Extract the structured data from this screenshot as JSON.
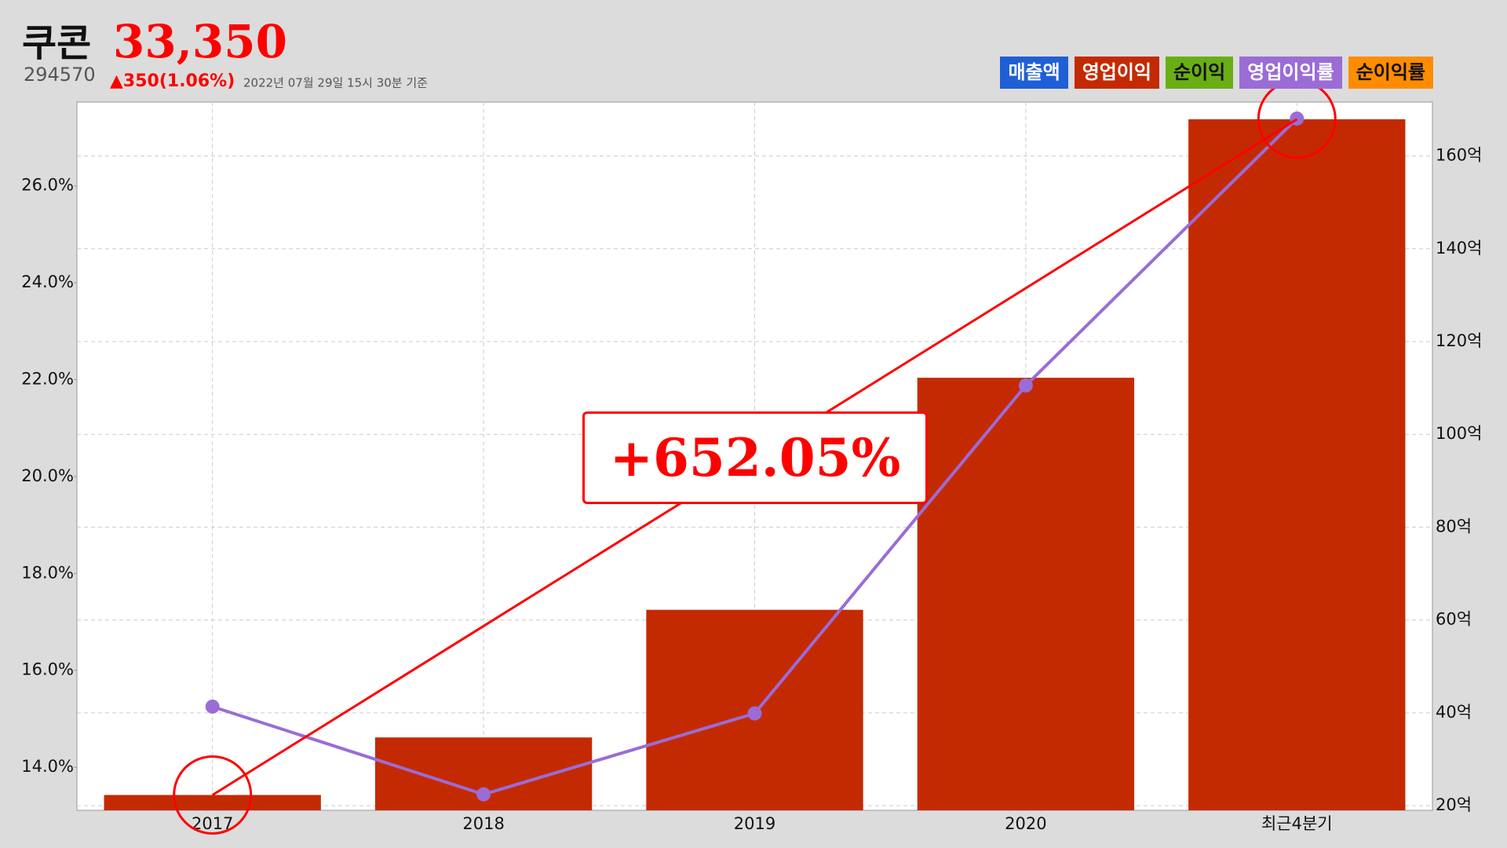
{
  "header": {
    "name": "쿠콘",
    "price": "33,350",
    "code": "294570",
    "change": "▲350(1.06%)",
    "timestamp": "2022년 07월 29일 15시 30분 기준"
  },
  "legend": [
    {
      "label": "매출액",
      "color": "#1f5fd6"
    },
    {
      "label": "영업이익",
      "color": "#c42a02"
    },
    {
      "label": "순이익",
      "color": "#6aae16"
    },
    {
      "label": "영업이익률",
      "color": "#9b6cd6"
    },
    {
      "label": "순이익률",
      "color": "#ff8c00"
    }
  ],
  "chart_data": {
    "type": "bar",
    "categories": [
      "2017",
      "2018",
      "2019",
      "2020",
      "최근4분기"
    ],
    "series": [
      {
        "name": "영업이익",
        "type": "bar",
        "axis": "y2",
        "color": "#c42a02",
        "values": [
          22.3,
          34.7,
          62.2,
          112.2,
          167.9
        ]
      },
      {
        "name": "영업이익률",
        "type": "line",
        "color": "#9b6cd6",
        "values": [
          15.25,
          13.44,
          15.11,
          21.88,
          27.39
        ]
      }
    ],
    "ylim": [
      13.11,
      27.73
    ],
    "yticks": [
      {
        "value": 14,
        "label": "14.0%"
      },
      {
        "value": 16,
        "label": "16.0%"
      },
      {
        "value": 18,
        "label": "18.0%"
      },
      {
        "value": 20,
        "label": "20.0%"
      },
      {
        "value": 22,
        "label": "22.0%"
      },
      {
        "value": 24,
        "label": "24.0%"
      },
      {
        "value": 26,
        "label": "26.0%"
      }
    ],
    "y2lim": [
      19.0,
      171.6
    ],
    "y2ticks": [
      {
        "value": 20,
        "label": "20억"
      },
      {
        "value": 40,
        "label": "40억"
      },
      {
        "value": 60,
        "label": "60억"
      },
      {
        "value": 80,
        "label": "80억"
      },
      {
        "value": 100,
        "label": "100억"
      },
      {
        "value": 120,
        "label": "120억"
      },
      {
        "value": 140,
        "label": "140억"
      },
      {
        "value": 160,
        "label": "160억"
      }
    ],
    "grid": true,
    "annotation": "+652.05%"
  }
}
